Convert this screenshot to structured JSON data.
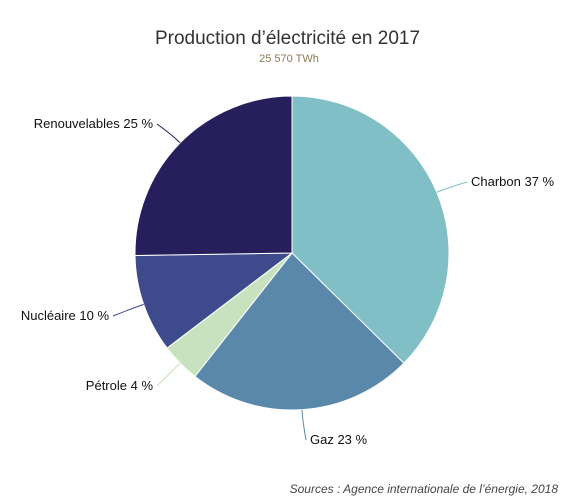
{
  "chart_data": {
    "type": "pie",
    "title": "Production d’électricité en 2017",
    "subtitle": "25 570 TWh",
    "unit": "%",
    "slices": [
      {
        "label": "Charbon",
        "value": 37,
        "color": "#7fbfc5"
      },
      {
        "label": "Gaz",
        "value": 23,
        "color": "#5a88ab"
      },
      {
        "label": "Pétrole",
        "value": 4,
        "color": "#c8e2bf"
      },
      {
        "label": "Nucléaire",
        "value": 10,
        "color": "#3d4a8b"
      },
      {
        "label": "Renouvelables",
        "value": 25,
        "color": "#271f5c"
      }
    ],
    "data_labels": [
      "Charbon 37 %",
      "Gaz 23 %",
      "Pétrole 4 %",
      "Nucléaire 10 %",
      "Renouvelables 25 %"
    ],
    "source": "Sources : Agence internationale de l’énergie, 2018"
  }
}
